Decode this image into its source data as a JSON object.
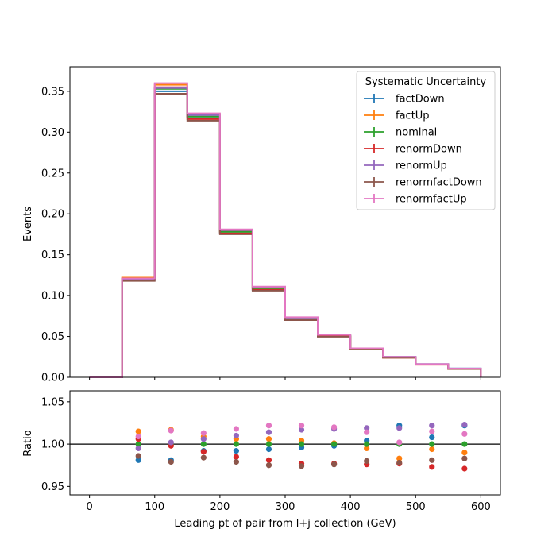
{
  "chart_data": [
    {
      "type": "line",
      "panel": "main",
      "ylabel": "Events",
      "xlim": [
        -30,
        630
      ],
      "ylim": [
        0,
        0.38
      ],
      "grid": false,
      "x_ticks": [
        0,
        100,
        200,
        300,
        400,
        500,
        600
      ],
      "y_ticks": [
        "0.00",
        "0.05",
        "0.10",
        "0.15",
        "0.20",
        "0.25",
        "0.30",
        "0.35"
      ],
      "bin_edges": [
        0,
        50,
        100,
        150,
        200,
        250,
        300,
        350,
        400,
        450,
        500,
        550,
        600
      ],
      "legend": {
        "title": "Systematic Uncertainty",
        "placement": "top-right"
      },
      "series": [
        {
          "name": "factDown",
          "color": "#1f77b4",
          "values": [
            0.0,
            0.119,
            0.35,
            0.319,
            0.176,
            0.107,
            0.0715,
            0.0505,
            0.035,
            0.025,
            0.0162,
            0.0108
          ]
        },
        {
          "name": "factUp",
          "color": "#ff7f0e",
          "values": [
            0.0,
            0.122,
            0.358,
            0.322,
            0.179,
            0.109,
            0.0725,
            0.051,
            0.0345,
            0.024,
            0.0155,
            0.0103
          ]
        },
        {
          "name": "nominal",
          "color": "#2ca02c",
          "values": [
            0.0,
            0.12,
            0.353,
            0.319,
            0.178,
            0.109,
            0.072,
            0.051,
            0.035,
            0.0245,
            0.0158,
            0.0105
          ]
        },
        {
          "name": "renormDown",
          "color": "#d62728",
          "values": [
            0.0,
            0.121,
            0.355,
            0.316,
            0.176,
            0.107,
            0.0705,
            0.05,
            0.0342,
            0.024,
            0.0154,
            0.0102
          ]
        },
        {
          "name": "renormUp",
          "color": "#9467bd",
          "values": [
            0.0,
            0.119,
            0.354,
            0.321,
            0.18,
            0.11,
            0.073,
            0.052,
            0.0355,
            0.025,
            0.0162,
            0.0108
          ]
        },
        {
          "name": "renormfactDown",
          "color": "#8c564b",
          "values": [
            0.0,
            0.118,
            0.347,
            0.314,
            0.175,
            0.106,
            0.07,
            0.0497,
            0.0343,
            0.024,
            0.0155,
            0.0103
          ]
        },
        {
          "name": "renormfactUp",
          "color": "#e377c2",
          "values": [
            0.0,
            0.121,
            0.36,
            0.323,
            0.181,
            0.111,
            0.0735,
            0.052,
            0.0355,
            0.025,
            0.0162,
            0.0107
          ]
        }
      ]
    },
    {
      "type": "scatter",
      "panel": "ratio",
      "xlabel": "Leading pt of pair from l+j collection (GeV)",
      "ylabel": "Ratio",
      "xlim": [
        -30,
        630
      ],
      "ylim": [
        0.94,
        1.063
      ],
      "grid": false,
      "reference_line": 1.0,
      "x_ticks": [
        0,
        100,
        200,
        300,
        400,
        500,
        600
      ],
      "y_ticks": [
        "0.95",
        "1.00",
        "1.05"
      ],
      "x": [
        75,
        125,
        175,
        225,
        275,
        325,
        375,
        425,
        475,
        525,
        575
      ],
      "series": [
        {
          "name": "factDown",
          "color": "#1f77b4",
          "values": [
            0.981,
            0.981,
            0.992,
            0.992,
            0.994,
            0.996,
            0.998,
            1.004,
            1.022,
            1.008,
            1.022
          ]
        },
        {
          "name": "factUp",
          "color": "#ff7f0e",
          "values": [
            1.015,
            1.017,
            1.009,
            1.006,
            1.006,
            1.004,
            1.001,
            0.995,
            0.983,
            0.994,
            0.99
          ]
        },
        {
          "name": "nominal",
          "color": "#2ca02c",
          "values": [
            1.0,
            1.0,
            1.0,
            1.0,
            1.0,
            1.0,
            1.0,
            1.0,
            1.0,
            1.0,
            1.0
          ]
        },
        {
          "name": "renormDown",
          "color": "#d62728",
          "values": [
            1.006,
            0.998,
            0.991,
            0.985,
            0.981,
            0.977,
            0.977,
            0.976,
            0.977,
            0.973,
            0.971
          ]
        },
        {
          "name": "renormUp",
          "color": "#9467bd",
          "values": [
            0.995,
            1.002,
            1.006,
            1.01,
            1.014,
            1.017,
            1.018,
            1.019,
            1.019,
            1.022,
            1.023
          ]
        },
        {
          "name": "renormfactDown",
          "color": "#8c564b",
          "values": [
            0.986,
            0.979,
            0.984,
            0.979,
            0.975,
            0.974,
            0.976,
            0.98,
            0.978,
            0.981,
            0.983
          ]
        },
        {
          "name": "renormfactUp",
          "color": "#e377c2",
          "values": [
            1.009,
            1.016,
            1.013,
            1.018,
            1.022,
            1.022,
            1.02,
            1.014,
            1.002,
            1.015,
            1.012
          ]
        }
      ]
    }
  ]
}
